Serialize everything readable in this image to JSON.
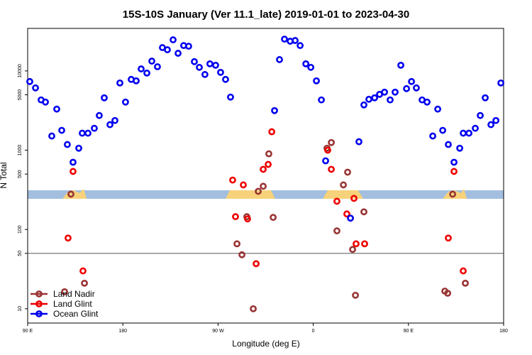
{
  "chart_data": {
    "type": "scatter",
    "title": "15S-10S January (Ver 11.1_late)   2019-01-01 to 2023-04-30",
    "xlabel": "Longitude (deg E)",
    "ylabel": "N Total",
    "log_y": true,
    "legend": "lower left",
    "reference_line": 50,
    "xlim": [
      90,
      540
    ],
    "xticks": [
      {
        "value": 90,
        "label": "90 E"
      },
      180,
      {
        "value": 270,
        "label": "90 W"
      },
      {
        "value": 360,
        "label": "0"
      },
      {
        "value": 450,
        "label": "90 E"
      },
      {
        "value": 540,
        "label": "180"
      }
    ],
    "ylim": [
      6.6,
      34400
    ],
    "yticks": [
      10,
      50,
      100,
      500,
      1000,
      5000,
      10000
    ],
    "series": [
      {
        "name": "Land Nadir",
        "color": "#993333",
        "x": [
          124.9,
          130.9,
          143.7,
          287.9,
          292.6,
          297.2,
          303.3,
          308.0,
          312.7,
          318.0,
          322.1,
          373.0,
          377.1,
          382.4,
          388.5,
          392.5,
          397.2,
          399.9,
          407.9,
          484.4,
          487.1,
          491.8,
          503.8
        ],
        "values": [
          16.4,
          279,
          21,
          66,
          48,
          145,
          10,
          303,
          351,
          901,
          142,
          1060,
          1250,
          96,
          365,
          528,
          56,
          14.8,
          167,
          16.7,
          15.7,
          279,
          21
        ]
      },
      {
        "name": "Land Glint",
        "color": "#ee0000",
        "x": [
          128.2,
          132.9,
          142.3,
          283.8,
          286.5,
          293.9,
          297.9,
          306.0,
          312.7,
          317.4,
          320.8,
          373.7,
          377.1,
          382.4,
          391.8,
          398.5,
          400.5,
          408.6,
          487.7,
          493.1,
          501.8
        ],
        "values": [
          78,
          540,
          30,
          420,
          145,
          365,
          136,
          37,
          574,
          662,
          1710,
          1000,
          574,
          227,
          157,
          247,
          66,
          66,
          78,
          540,
          30
        ]
      },
      {
        "name": "Ocean Glint",
        "color": "#0000ee",
        "x": [
          92.0,
          97.4,
          102.7,
          106.8,
          112.8,
          117.5,
          122.2,
          127.5,
          132.9,
          138.3,
          141.6,
          147.0,
          153.0,
          157.7,
          162.4,
          167.8,
          172.5,
          177.2,
          182.5,
          187.9,
          192.6,
          197.3,
          202.7,
          207.4,
          212.7,
          217.4,
          222.1,
          227.5,
          232.2,
          237.5,
          242.2,
          247.6,
          252.3,
          257.6,
          262.3,
          267.7,
          272.4,
          277.1,
          281.8,
          323.4,
          328.1,
          332.8,
          338.2,
          342.9,
          347.6,
          353.0,
          357.7,
          363.0,
          367.7,
          371.7,
          395.2,
          403.2,
          407.9,
          412.6,
          418.0,
          422.7,
          427.4,
          432.7,
          437.4,
          442.8,
          448.2,
          452.9,
          457.5,
          462.9,
          467.6,
          473.0,
          477.7,
          482.4,
          487.7,
          493.1,
          498.5,
          501.8,
          507.2,
          513.2,
          517.9,
          522.6,
          528.0,
          532.7,
          537.4
        ],
        "values": [
          7350,
          6110,
          4310,
          4050,
          1510,
          3300,
          1780,
          1180,
          705,
          1060,
          1640,
          1640,
          1890,
          2740,
          4580,
          2100,
          2370,
          7050,
          4050,
          7820,
          7500,
          10600,
          9400,
          13300,
          11300,
          19700,
          18500,
          24700,
          16700,
          20900,
          20500,
          13100,
          11100,
          9020,
          12300,
          11800,
          9600,
          7820,
          4680,
          3160,
          13900,
          25200,
          23700,
          24200,
          20900,
          12300,
          11100,
          7500,
          4310,
          735,
          139,
          1280,
          3730,
          4390,
          4580,
          5070,
          5400,
          4310,
          5400,
          11800,
          5980,
          7350,
          6110,
          4310,
          4050,
          1510,
          3300,
          1780,
          1180,
          705,
          1060,
          1640,
          1640,
          1890,
          2740,
          4580,
          2100,
          2370,
          7050
        ]
      }
    ]
  }
}
